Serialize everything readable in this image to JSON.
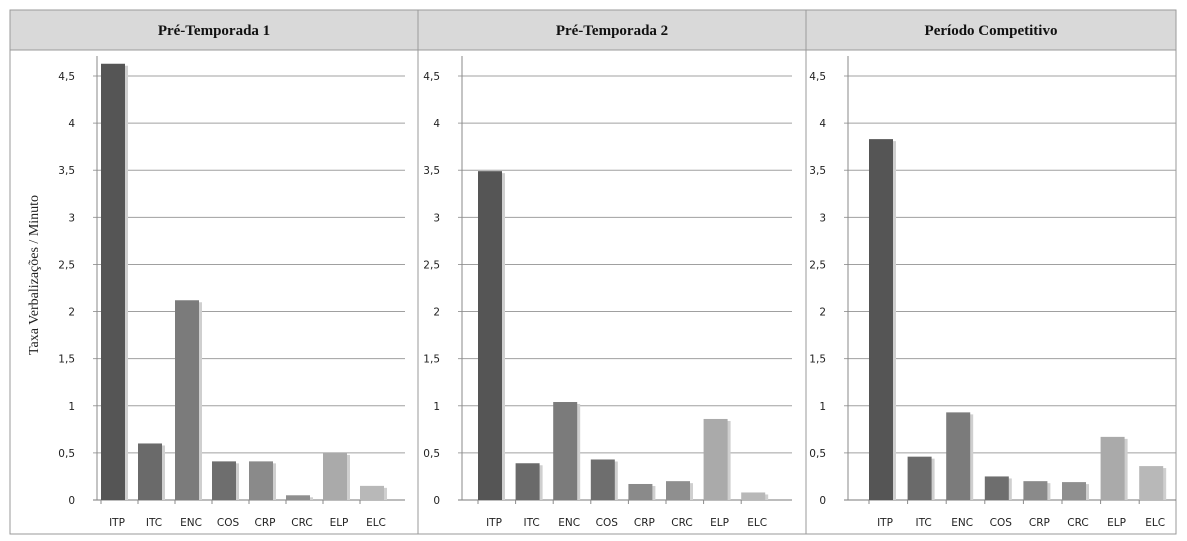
{
  "chart_data": {
    "type": "bar",
    "ylabel": "Taxa Verbalizações / Minuto",
    "ylim": [
      0,
      4.5
    ],
    "y_ticks": [
      "0",
      "0,5",
      "1",
      "1,5",
      "2",
      "2,5",
      "3",
      "3,5",
      "4",
      "4,5"
    ],
    "grid": true,
    "categories": [
      "ITP",
      "ITC",
      "ENC",
      "COS",
      "CRP",
      "CRC",
      "ELP",
      "ELC"
    ],
    "bar_colors": [
      "#555555",
      "#6a6a6a",
      "#7b7b7b",
      "#6e6e6e",
      "#8a8a8a",
      "#8f8f8f",
      "#aaaaaa",
      "#b8b8b8"
    ],
    "panels": [
      {
        "title": "Pré-Temporada 1",
        "values": [
          4.63,
          0.6,
          2.12,
          0.41,
          0.41,
          0.05,
          0.5,
          0.15
        ]
      },
      {
        "title": "Pré-Temporada 2",
        "values": [
          3.49,
          0.39,
          1.04,
          0.43,
          0.17,
          0.2,
          0.86,
          0.08
        ]
      },
      {
        "title": "Período Competitivo",
        "values": [
          3.83,
          0.46,
          0.93,
          0.25,
          0.2,
          0.19,
          0.67,
          0.36
        ]
      }
    ]
  }
}
